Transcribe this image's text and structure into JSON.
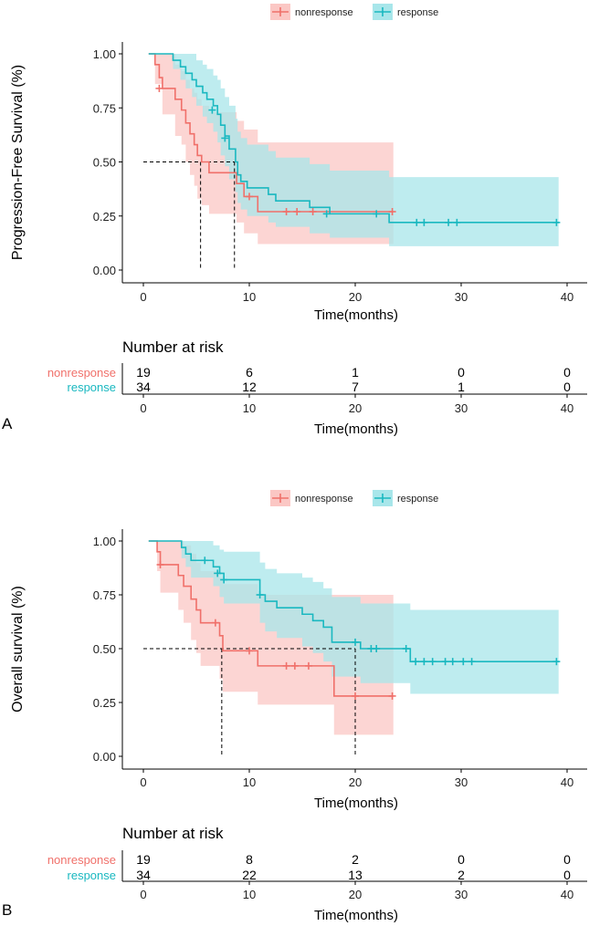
{
  "colors": {
    "nonresponse": "#f0706a",
    "response": "#1ab8c0",
    "nonresponse_fill": "#fbc7c4",
    "response_fill": "#a8e6ea",
    "axis": "#000000"
  },
  "chart_data": [
    {
      "type": "line",
      "panel_label": "A",
      "ylabel": "Progression-Free Survival (%)",
      "xlabel": "Time(months)",
      "xlim": [
        -1,
        41
      ],
      "ylim": [
        -0.04,
        1.04
      ],
      "xticks": [
        0,
        10,
        20,
        30,
        40
      ],
      "yticks": [
        "1.00",
        "0.75",
        "0.50",
        "0.25",
        "0.00"
      ],
      "legend": [
        "nonresponse",
        "response"
      ],
      "median_lines": [
        5.4,
        8.6
      ],
      "series": [
        {
          "name": "nonresponse",
          "color_key": "nonresponse",
          "steps": [
            [
              0.5,
              1.0
            ],
            [
              1.1,
              0.95
            ],
            [
              1.5,
              0.89
            ],
            [
              1.8,
              0.84
            ],
            [
              3.0,
              0.79
            ],
            [
              3.6,
              0.74
            ],
            [
              4.0,
              0.68
            ],
            [
              4.4,
              0.63
            ],
            [
              4.8,
              0.58
            ],
            [
              5.1,
              0.53
            ],
            [
              5.5,
              0.5
            ],
            [
              6.2,
              0.45
            ],
            [
              8.8,
              0.4
            ],
            [
              9.5,
              0.34
            ],
            [
              10.8,
              0.27
            ],
            [
              23.6,
              0.27
            ]
          ],
          "band": [
            [
              0.5,
              1.0,
              1.0
            ],
            [
              1.1,
              0.86,
              1.0
            ],
            [
              1.8,
              0.72,
              1.0
            ],
            [
              3.0,
              0.62,
              0.95
            ],
            [
              3.6,
              0.58,
              0.92
            ],
            [
              4.0,
              0.5,
              0.88
            ],
            [
              4.4,
              0.44,
              0.84
            ],
            [
              4.8,
              0.39,
              0.82
            ],
            [
              5.1,
              0.33,
              0.79
            ],
            [
              5.5,
              0.3,
              0.76
            ],
            [
              6.2,
              0.26,
              0.73
            ],
            [
              8.8,
              0.22,
              0.69
            ],
            [
              9.5,
              0.17,
              0.65
            ],
            [
              10.8,
              0.12,
              0.59
            ],
            [
              23.6,
              0.12,
              0.59
            ]
          ],
          "censor": [
            [
              1.5,
              0.84
            ],
            [
              10.0,
              0.34
            ],
            [
              13.5,
              0.27
            ],
            [
              14.5,
              0.27
            ],
            [
              16.0,
              0.27
            ],
            [
              23.5,
              0.27
            ]
          ]
        },
        {
          "name": "response",
          "color_key": "response",
          "steps": [
            [
              0.5,
              1.0
            ],
            [
              2.8,
              0.97
            ],
            [
              3.5,
              0.94
            ],
            [
              4.0,
              0.91
            ],
            [
              4.6,
              0.88
            ],
            [
              5.0,
              0.85
            ],
            [
              5.6,
              0.82
            ],
            [
              6.0,
              0.79
            ],
            [
              6.6,
              0.76
            ],
            [
              7.0,
              0.72
            ],
            [
              7.3,
              0.67
            ],
            [
              7.7,
              0.62
            ],
            [
              8.1,
              0.56
            ],
            [
              8.7,
              0.5
            ],
            [
              8.9,
              0.44
            ],
            [
              9.2,
              0.41
            ],
            [
              9.8,
              0.38
            ],
            [
              11.8,
              0.35
            ],
            [
              12.5,
              0.32
            ],
            [
              15.7,
              0.29
            ],
            [
              17.6,
              0.26
            ],
            [
              23.2,
              0.22
            ],
            [
              39.2,
              0.22
            ]
          ],
          "band": [
            [
              0.5,
              1.0,
              1.0
            ],
            [
              2.8,
              0.93,
              1.0
            ],
            [
              3.5,
              0.88,
              1.0
            ],
            [
              4.0,
              0.84,
              1.0
            ],
            [
              4.6,
              0.8,
              1.0
            ],
            [
              5.0,
              0.76,
              0.97
            ],
            [
              5.6,
              0.71,
              0.95
            ],
            [
              6.0,
              0.68,
              0.93
            ],
            [
              6.6,
              0.64,
              0.9
            ],
            [
              7.0,
              0.59,
              0.88
            ],
            [
              7.3,
              0.53,
              0.84
            ],
            [
              7.7,
              0.48,
              0.8
            ],
            [
              8.1,
              0.42,
              0.76
            ],
            [
              8.7,
              0.36,
              0.7
            ],
            [
              8.9,
              0.31,
              0.64
            ],
            [
              9.2,
              0.28,
              0.61
            ],
            [
              9.8,
              0.25,
              0.58
            ],
            [
              11.8,
              0.22,
              0.55
            ],
            [
              12.5,
              0.2,
              0.52
            ],
            [
              15.7,
              0.17,
              0.49
            ],
            [
              17.6,
              0.15,
              0.46
            ],
            [
              23.2,
              0.11,
              0.43
            ],
            [
              39.2,
              0.11,
              0.43
            ]
          ],
          "censor": [
            [
              6.5,
              0.74
            ],
            [
              7.7,
              0.61
            ],
            [
              17.3,
              0.26
            ],
            [
              22.0,
              0.26
            ],
            [
              25.8,
              0.22
            ],
            [
              26.5,
              0.22
            ],
            [
              28.8,
              0.22
            ],
            [
              29.6,
              0.22
            ],
            [
              39.0,
              0.22
            ]
          ]
        }
      ],
      "risk_table": {
        "title": "Number at risk",
        "rows": [
          {
            "label": "nonresponse",
            "color_key": "nonresponse",
            "values": [
              "19",
              "6",
              "1",
              "0",
              "0"
            ]
          },
          {
            "label": "response",
            "color_key": "response",
            "values": [
              "34",
              "12",
              "7",
              "1",
              "0"
            ]
          }
        ],
        "xticks": [
          0,
          10,
          20,
          30,
          40
        ],
        "xlabel": "Time(months)"
      }
    },
    {
      "type": "line",
      "panel_label": "B",
      "ylabel": "Overall survival (%)",
      "xlabel": "Time(months)",
      "xlim": [
        -1,
        41
      ],
      "ylim": [
        -0.04,
        1.04
      ],
      "xticks": [
        0,
        10,
        20,
        30,
        40
      ],
      "yticks": [
        "1.00",
        "0.75",
        "0.50",
        "0.25",
        "0.00"
      ],
      "legend": [
        "nonresponse",
        "response"
      ],
      "median_lines": [
        7.4,
        20.0
      ],
      "series": [
        {
          "name": "nonresponse",
          "color_key": "nonresponse",
          "steps": [
            [
              0.5,
              1.0
            ],
            [
              1.3,
              0.95
            ],
            [
              1.6,
              0.89
            ],
            [
              3.3,
              0.84
            ],
            [
              3.8,
              0.79
            ],
            [
              4.5,
              0.73
            ],
            [
              5.0,
              0.68
            ],
            [
              5.4,
              0.62
            ],
            [
              7.2,
              0.56
            ],
            [
              7.5,
              0.49
            ],
            [
              10.8,
              0.42
            ],
            [
              18.0,
              0.28
            ],
            [
              23.6,
              0.28
            ]
          ],
          "band": [
            [
              0.5,
              1.0,
              1.0
            ],
            [
              1.3,
              0.86,
              1.0
            ],
            [
              1.6,
              0.76,
              1.0
            ],
            [
              3.3,
              0.68,
              1.0
            ],
            [
              3.8,
              0.62,
              0.98
            ],
            [
              4.5,
              0.54,
              0.94
            ],
            [
              5.0,
              0.48,
              0.9
            ],
            [
              5.4,
              0.42,
              0.86
            ],
            [
              7.2,
              0.36,
              0.83
            ],
            [
              7.5,
              0.3,
              0.8
            ],
            [
              10.8,
              0.24,
              0.75
            ],
            [
              18.0,
              0.1,
              0.75
            ],
            [
              23.6,
              0.1,
              0.75
            ]
          ],
          "censor": [
            [
              1.6,
              0.89
            ],
            [
              6.8,
              0.62
            ],
            [
              10.0,
              0.49
            ],
            [
              13.5,
              0.42
            ],
            [
              14.3,
              0.42
            ],
            [
              15.6,
              0.42
            ],
            [
              20.0,
              0.28
            ],
            [
              23.5,
              0.28
            ]
          ]
        },
        {
          "name": "response",
          "color_key": "response",
          "steps": [
            [
              0.5,
              1.0
            ],
            [
              3.6,
              0.97
            ],
            [
              4.0,
              0.94
            ],
            [
              4.5,
              0.91
            ],
            [
              6.6,
              0.88
            ],
            [
              7.2,
              0.85
            ],
            [
              7.6,
              0.82
            ],
            [
              11.0,
              0.75
            ],
            [
              11.5,
              0.72
            ],
            [
              12.6,
              0.69
            ],
            [
              15.0,
              0.66
            ],
            [
              16.0,
              0.63
            ],
            [
              17.0,
              0.6
            ],
            [
              17.8,
              0.53
            ],
            [
              20.5,
              0.5
            ],
            [
              25.2,
              0.44
            ],
            [
              39.2,
              0.44
            ]
          ],
          "band": [
            [
              0.5,
              1.0,
              1.0
            ],
            [
              3.6,
              0.92,
              1.0
            ],
            [
              4.0,
              0.88,
              1.0
            ],
            [
              4.5,
              0.83,
              1.0
            ],
            [
              6.6,
              0.79,
              0.98
            ],
            [
              7.2,
              0.74,
              0.96
            ],
            [
              7.6,
              0.71,
              0.95
            ],
            [
              11.0,
              0.62,
              0.9
            ],
            [
              11.5,
              0.58,
              0.87
            ],
            [
              12.6,
              0.55,
              0.85
            ],
            [
              15.0,
              0.51,
              0.83
            ],
            [
              16.0,
              0.48,
              0.81
            ],
            [
              17.0,
              0.44,
              0.78
            ],
            [
              17.8,
              0.37,
              0.74
            ],
            [
              20.5,
              0.34,
              0.71
            ],
            [
              25.2,
              0.29,
              0.68
            ],
            [
              39.2,
              0.29,
              0.68
            ]
          ],
          "censor": [
            [
              5.8,
              0.91
            ],
            [
              7.0,
              0.85
            ],
            [
              7.6,
              0.82
            ],
            [
              11.0,
              0.75
            ],
            [
              20.0,
              0.53
            ],
            [
              21.5,
              0.5
            ],
            [
              22.0,
              0.5
            ],
            [
              24.8,
              0.5
            ],
            [
              25.7,
              0.44
            ],
            [
              26.5,
              0.44
            ],
            [
              27.3,
              0.44
            ],
            [
              28.5,
              0.44
            ],
            [
              29.2,
              0.44
            ],
            [
              30.2,
              0.44
            ],
            [
              31.0,
              0.44
            ],
            [
              39.0,
              0.44
            ]
          ]
        }
      ],
      "risk_table": {
        "title": "Number at risk",
        "rows": [
          {
            "label": "nonresponse",
            "color_key": "nonresponse",
            "values": [
              "19",
              "8",
              "2",
              "0",
              "0"
            ]
          },
          {
            "label": "response",
            "color_key": "response",
            "values": [
              "34",
              "22",
              "13",
              "2",
              "0"
            ]
          }
        ],
        "xticks": [
          0,
          10,
          20,
          30,
          40
        ],
        "xlabel": "Time(months)"
      }
    }
  ]
}
